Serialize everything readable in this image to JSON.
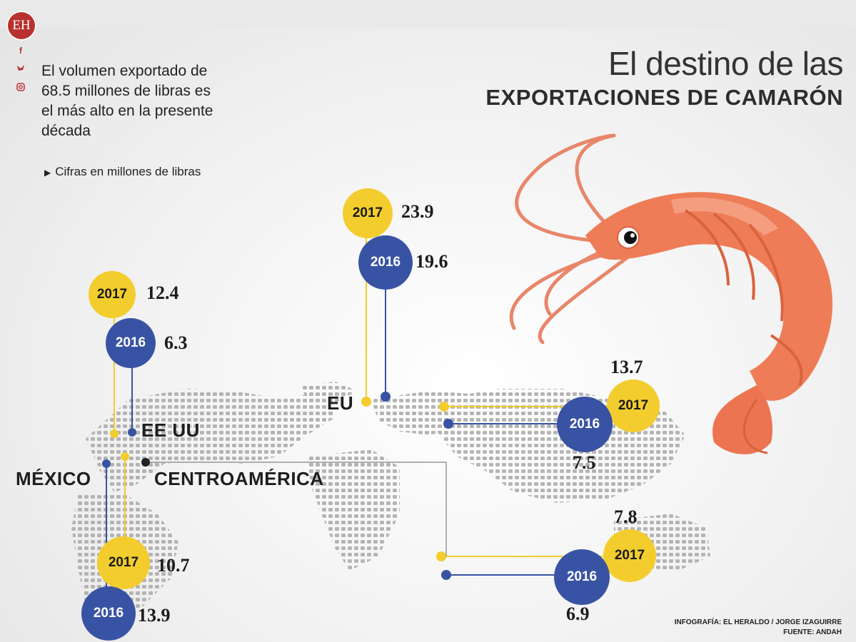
{
  "brand": {
    "logo": "EH",
    "social_icons": [
      "facebook-icon",
      "twitter-icon",
      "instagram-icon"
    ]
  },
  "intro": {
    "lines": [
      "El volumen exportado de",
      "68.5 millones de libras es",
      "el más alto en la presente",
      "década"
    ],
    "note": "Cifras en millones de libras"
  },
  "title": {
    "line1": "El destino de las",
    "line2": "EXPORTACIONES DE CAMARÓN"
  },
  "regions": {
    "eeuu": {
      "label": "EE UU",
      "y2017": "2017",
      "v2017": "12.4",
      "y2016": "2016",
      "v2016": "6.3"
    },
    "eu": {
      "label": "EU",
      "y2017": "2017",
      "v2017": "23.9",
      "y2016": "2016",
      "v2016": "19.6"
    },
    "mexico": {
      "label": "MÉXICO",
      "y2017": "2017",
      "v2017": "10.7",
      "y2016": "2016",
      "v2016": "13.9"
    },
    "centroamerica": {
      "label": "CENTROAMÉRICA"
    },
    "asia": {
      "y2017": "2017",
      "v2017": "13.7",
      "y2016": "2016",
      "v2016": "7.5"
    },
    "other": {
      "y2017": "2017",
      "v2017": "7.8",
      "y2016": "2016",
      "v2016": "6.9"
    }
  },
  "credits": {
    "line1": "INFOGRAFÍA: EL HERALDO / JORGE IZAGUIRRE",
    "line2": "FUENTE: ANDAH"
  },
  "colors": {
    "year2017": "#f2cd2d",
    "year2016": "#3953a4",
    "shrimp": "#ec7a55",
    "map": "#a9a9a9"
  }
}
